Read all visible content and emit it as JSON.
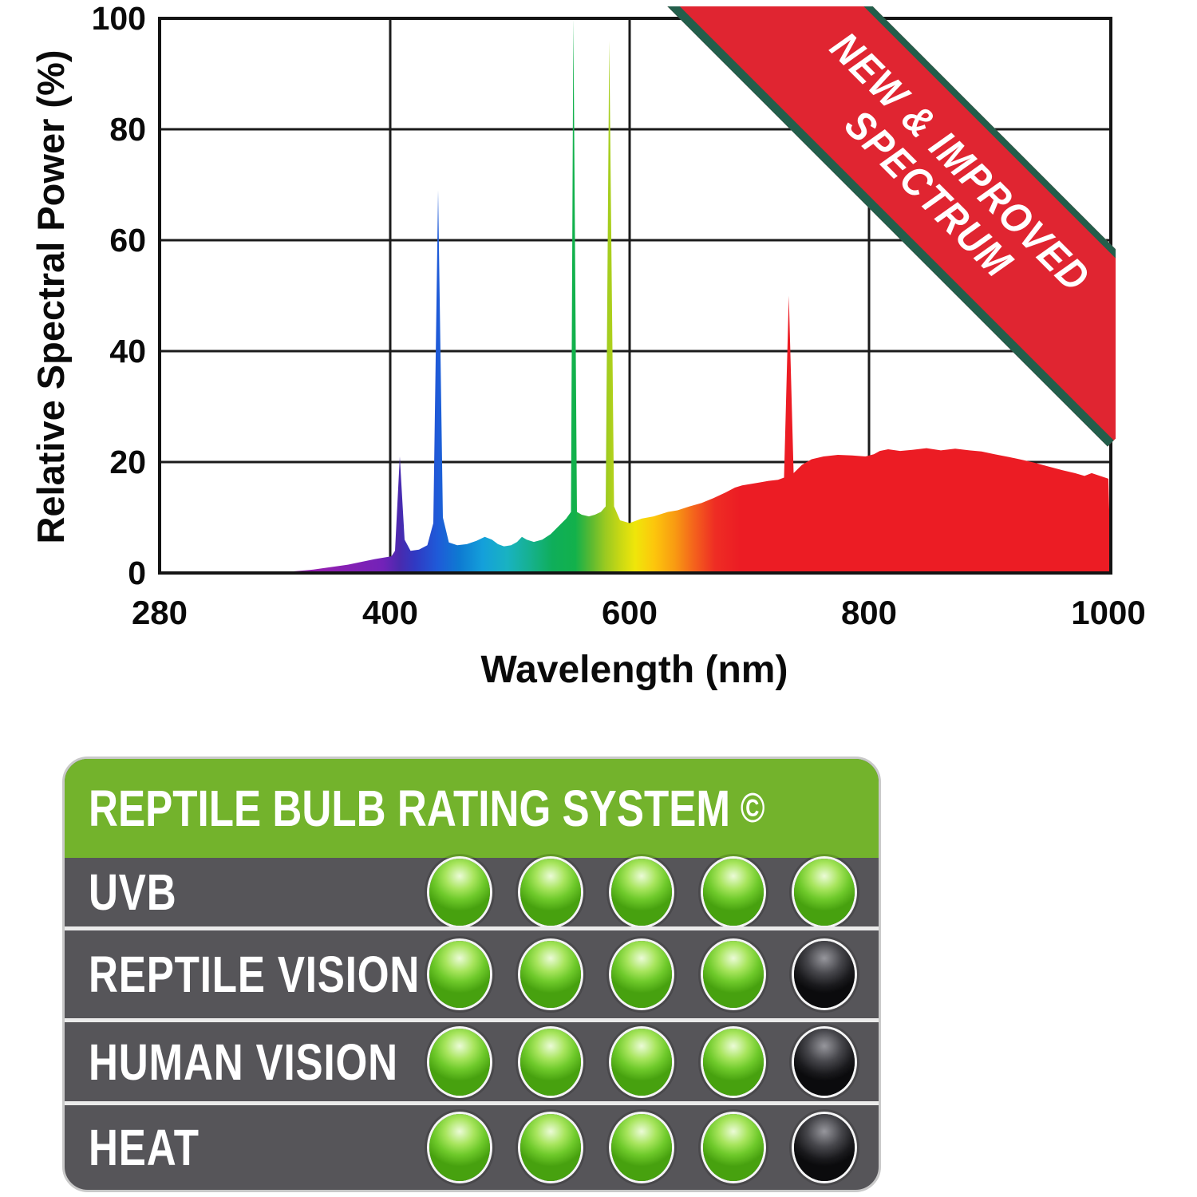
{
  "chart_data": {
    "type": "area",
    "title": "",
    "xlabel": "Wavelength (nm)",
    "ylabel": "Relative Spectral Power (%)",
    "x_ticks": [
      280,
      400,
      600,
      800,
      1000
    ],
    "y_ticks": [
      0,
      20,
      40,
      60,
      80,
      100
    ],
    "xlim": [
      280,
      1000
    ],
    "ylim": [
      0,
      100
    ],
    "x_scale_note": "280-400 nm segment compressed; 400-1000 nm linear",
    "grid": true,
    "legend": "none",
    "series": [
      {
        "name": "Relative spectral power",
        "style": "filled area with visible-spectrum rainbow gradient",
        "points": [
          [
            280,
            0
          ],
          [
            340,
            0
          ],
          [
            360,
            0.6
          ],
          [
            378,
            1.5
          ],
          [
            392,
            2.5
          ],
          [
            401,
            3
          ],
          [
            404,
            4
          ],
          [
            408,
            21
          ],
          [
            412,
            6
          ],
          [
            417,
            4
          ],
          [
            424,
            4.2
          ],
          [
            431,
            5
          ],
          [
            436,
            9
          ],
          [
            440,
            69
          ],
          [
            444,
            10
          ],
          [
            449,
            5.5
          ],
          [
            456,
            5
          ],
          [
            464,
            5.2
          ],
          [
            472,
            5.8
          ],
          [
            479,
            6.5
          ],
          [
            485,
            6
          ],
          [
            490,
            5.2
          ],
          [
            495,
            4.8
          ],
          [
            501,
            5
          ],
          [
            506,
            5.6
          ],
          [
            510,
            6.5
          ],
          [
            514,
            6
          ],
          [
            520,
            5.6
          ],
          [
            527,
            6
          ],
          [
            534,
            7
          ],
          [
            541,
            8.5
          ],
          [
            547,
            9.8
          ],
          [
            551,
            11
          ],
          [
            553,
            100
          ],
          [
            556,
            11
          ],
          [
            560,
            10.5
          ],
          [
            566,
            10.2
          ],
          [
            571,
            10.5
          ],
          [
            576,
            11
          ],
          [
            580,
            12
          ],
          [
            583,
            96
          ],
          [
            587,
            12
          ],
          [
            592,
            9.5
          ],
          [
            600,
            9
          ],
          [
            610,
            9.8
          ],
          [
            620,
            10.2
          ],
          [
            632,
            11
          ],
          [
            640,
            11.3
          ],
          [
            650,
            12
          ],
          [
            660,
            12.6
          ],
          [
            670,
            13.5
          ],
          [
            680,
            14.5
          ],
          [
            688,
            15.4
          ],
          [
            694,
            15.8
          ],
          [
            700,
            16
          ],
          [
            708,
            16.3
          ],
          [
            716,
            16.6
          ],
          [
            724,
            16.8
          ],
          [
            729,
            17.2
          ],
          [
            733,
            50
          ],
          [
            737,
            18
          ],
          [
            744,
            19.5
          ],
          [
            752,
            20.5
          ],
          [
            762,
            21
          ],
          [
            774,
            21.3
          ],
          [
            786,
            21.2
          ],
          [
            797,
            21
          ],
          [
            804,
            21.4
          ],
          [
            809,
            22
          ],
          [
            816,
            22.3
          ],
          [
            826,
            22
          ],
          [
            836,
            22.2
          ],
          [
            848,
            22.5
          ],
          [
            860,
            22.1
          ],
          [
            872,
            22.4
          ],
          [
            884,
            22.1
          ],
          [
            894,
            21.9
          ],
          [
            905,
            21.4
          ],
          [
            917,
            20.9
          ],
          [
            928,
            20.4
          ],
          [
            938,
            19.9
          ],
          [
            950,
            19.2
          ],
          [
            962,
            18.5
          ],
          [
            972,
            18
          ],
          [
            980,
            17.5
          ],
          [
            986,
            18
          ],
          [
            993,
            17.5
          ],
          [
            1000,
            17
          ]
        ]
      }
    ],
    "peaks": [
      {
        "nm": 408,
        "percent": 21,
        "zone": "violet"
      },
      {
        "nm": 440,
        "percent": 69,
        "zone": "blue"
      },
      {
        "nm": 553,
        "percent": 100,
        "zone": "green"
      },
      {
        "nm": 583,
        "percent": 96,
        "zone": "yellow-green"
      },
      {
        "nm": 733,
        "percent": 50,
        "zone": "red"
      }
    ],
    "spectrum_gradient": [
      [
        0,
        "#a21fb4"
      ],
      [
        0.17,
        "#921fb0"
      ],
      [
        0.235,
        "#7222b8"
      ],
      [
        0.252,
        "#4a2aae"
      ],
      [
        0.268,
        "#3039c2"
      ],
      [
        0.292,
        "#1f5ad8"
      ],
      [
        0.315,
        "#0e7ad2"
      ],
      [
        0.34,
        "#14a0da"
      ],
      [
        0.365,
        "#19b2c2"
      ],
      [
        0.39,
        "#16b18e"
      ],
      [
        0.413,
        "#0fae5a"
      ],
      [
        0.437,
        "#12b14b"
      ],
      [
        0.453,
        "#58b932"
      ],
      [
        0.468,
        "#98c922"
      ],
      [
        0.484,
        "#c8d814"
      ],
      [
        0.5,
        "#efe60a"
      ],
      [
        0.52,
        "#fdc60c"
      ],
      [
        0.542,
        "#f89a12"
      ],
      [
        0.562,
        "#f4621c"
      ],
      [
        0.584,
        "#ee2d24"
      ],
      [
        0.61,
        "#ec1c24"
      ],
      [
        1,
        "#ec1c24"
      ]
    ],
    "banner": {
      "line1": "NEW & IMPROVED",
      "line2": "SPECTRUM",
      "bg": "#e02531",
      "edge": "#235e4b",
      "text_color": "#ffffff"
    }
  },
  "rating_panel": {
    "title": "REPTILE BULB RATING SYSTEM",
    "title_symbol": "©",
    "header_bg": "#73b32c",
    "body_bg": "#565559",
    "divider_color": "#ebebeb",
    "dot_on_color": "#6ec92a",
    "dot_off_color": "#1a1a1d",
    "max_dots": 5,
    "rows": [
      {
        "label": "UVB",
        "score": 5
      },
      {
        "label": "REPTILE VISION",
        "score": 4
      },
      {
        "label": "HUMAN VISION",
        "score": 4
      },
      {
        "label": "HEAT",
        "score": 4
      }
    ]
  }
}
